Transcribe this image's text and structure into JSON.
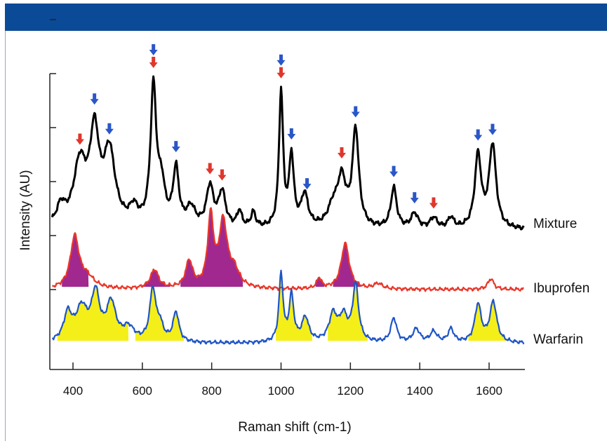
{
  "chart_data": {
    "type": "line",
    "xlabel": "Raman shift (cm-1)",
    "ylabel": "Intensity (AU)",
    "xlim": [
      330,
      1700
    ],
    "x_ticks": [
      400,
      600,
      800,
      1000,
      1200,
      1400,
      1600
    ],
    "y_ticks": [
      1,
      2,
      3,
      4,
      5,
      6
    ],
    "grid": false,
    "colors": {
      "header": "#0b4a96",
      "mixture": "#000000",
      "ibuprofen": "#e8372a",
      "ibuprofen_fill": "#a0288f",
      "warfarin": "#1f55c5",
      "warfarin_fill": "#f4ef18",
      "arrow_blue": "#2a56c8",
      "arrow_red": "#e0362c"
    },
    "series": [
      {
        "name": "Mixture",
        "baseline": 2.1,
        "noise": 0.05,
        "peaks": [
          [
            365,
            0.35,
            15
          ],
          [
            420,
            1.15,
            22
          ],
          [
            462,
            1.62,
            16
          ],
          [
            505,
            1.35,
            20
          ],
          [
            575,
            0.3,
            15
          ],
          [
            632,
            2.55,
            10
          ],
          [
            655,
            0.7,
            12
          ],
          [
            697,
            1.05,
            10
          ],
          [
            740,
            0.35,
            15
          ],
          [
            795,
            0.75,
            12
          ],
          [
            830,
            0.65,
            12
          ],
          [
            880,
            0.3,
            8
          ],
          [
            920,
            0.28,
            8
          ],
          [
            1000,
            2.5,
            7
          ],
          [
            1030,
            1.3,
            8
          ],
          [
            1068,
            0.6,
            12
          ],
          [
            1150,
            0.35,
            18
          ],
          [
            1175,
            0.85,
            15
          ],
          [
            1215,
            1.8,
            11
          ],
          [
            1325,
            0.75,
            10
          ],
          [
            1385,
            0.28,
            12
          ],
          [
            1440,
            0.2,
            12
          ],
          [
            1490,
            0.2,
            10
          ],
          [
            1568,
            1.35,
            11
          ],
          [
            1610,
            1.55,
            12
          ]
        ]
      },
      {
        "name": "Ibuprofen",
        "baseline": 1.0,
        "noise": 0.04,
        "peaks": [
          [
            405,
            0.95,
            15
          ],
          [
            440,
            0.2,
            25
          ],
          [
            635,
            0.35,
            14
          ],
          [
            735,
            0.5,
            12
          ],
          [
            797,
            1.3,
            10
          ],
          [
            833,
            1.2,
            14
          ],
          [
            865,
            0.3,
            18
          ],
          [
            1110,
            0.2,
            8
          ],
          [
            1185,
            0.85,
            14
          ],
          [
            1280,
            0.1,
            15
          ],
          [
            1605,
            0.2,
            10
          ]
        ],
        "fills": [
          [
            368,
            445
          ],
          [
            600,
            680
          ],
          [
            710,
            890
          ],
          [
            1100,
            1125
          ],
          [
            1150,
            1230
          ]
        ]
      },
      {
        "name": "Warfarin",
        "baseline": 0.0,
        "noise": 0.04,
        "peaks": [
          [
            385,
            0.5,
            14
          ],
          [
            425,
            0.6,
            20
          ],
          [
            465,
            0.85,
            14
          ],
          [
            510,
            0.7,
            16
          ],
          [
            560,
            0.25,
            20
          ],
          [
            630,
            0.95,
            10
          ],
          [
            650,
            0.3,
            12
          ],
          [
            697,
            0.55,
            10
          ],
          [
            1000,
            1.25,
            7
          ],
          [
            1030,
            0.85,
            8
          ],
          [
            1070,
            0.45,
            12
          ],
          [
            1150,
            0.5,
            14
          ],
          [
            1180,
            0.45,
            14
          ],
          [
            1215,
            1.05,
            10
          ],
          [
            1325,
            0.45,
            10
          ],
          [
            1390,
            0.25,
            12
          ],
          [
            1440,
            0.2,
            12
          ],
          [
            1490,
            0.25,
            10
          ],
          [
            1568,
            0.7,
            11
          ],
          [
            1612,
            0.75,
            12
          ]
        ],
        "fills": [
          [
            355,
            560
          ],
          [
            580,
            720
          ],
          [
            985,
            1090
          ],
          [
            1135,
            1250
          ],
          [
            1540,
            1650
          ]
        ]
      }
    ],
    "arrows": [
      {
        "x": 420,
        "color": "red"
      },
      {
        "x": 462,
        "color": "blue"
      },
      {
        "x": 505,
        "color": "blue"
      },
      {
        "x": 632,
        "color": "blue"
      },
      {
        "x": 632,
        "color": "red"
      },
      {
        "x": 697,
        "color": "blue"
      },
      {
        "x": 795,
        "color": "red"
      },
      {
        "x": 830,
        "color": "red"
      },
      {
        "x": 1000,
        "color": "blue"
      },
      {
        "x": 1000,
        "color": "red"
      },
      {
        "x": 1030,
        "color": "blue"
      },
      {
        "x": 1075,
        "color": "blue"
      },
      {
        "x": 1175,
        "color": "red"
      },
      {
        "x": 1215,
        "color": "blue"
      },
      {
        "x": 1325,
        "color": "blue"
      },
      {
        "x": 1385,
        "color": "blue"
      },
      {
        "x": 1440,
        "color": "red"
      },
      {
        "x": 1568,
        "color": "blue"
      },
      {
        "x": 1610,
        "color": "blue"
      }
    ]
  }
}
